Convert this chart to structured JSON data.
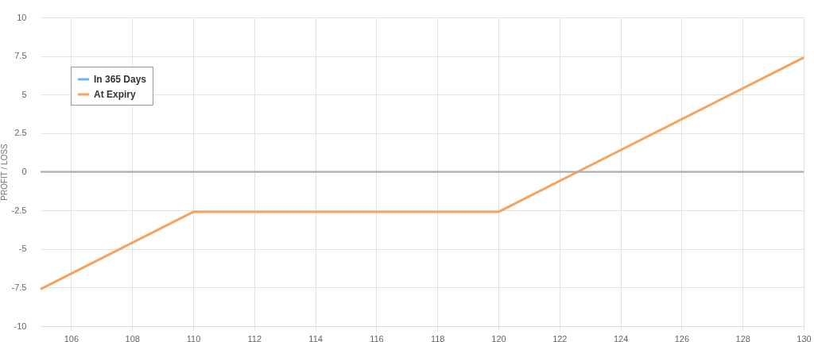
{
  "chart_data": {
    "type": "line",
    "ylabel": "PROFIT / LOSS",
    "xlim": [
      105,
      130
    ],
    "xticks": [
      106,
      108,
      110,
      112,
      114,
      116,
      118,
      120,
      122,
      124,
      126,
      128,
      130
    ],
    "ylim": [
      -10,
      10
    ],
    "yticks": [
      -10,
      -7.5,
      -5,
      -2.5,
      0,
      2.5,
      5,
      7.5,
      10
    ],
    "series": [
      {
        "name": "In 365 Days",
        "color": "#6fb4ea"
      },
      {
        "name": "At Expiry",
        "color": "#f5a35e",
        "x": [
          105,
          110,
          120,
          130
        ],
        "values": [
          -7.6,
          -2.6,
          -2.6,
          7.4
        ]
      }
    ],
    "ref_lines": [
      {
        "axis": "y",
        "value": 0,
        "color": "#aaaaaa"
      }
    ],
    "grid": true,
    "legend": "top left",
    "marker": "none",
    "line_style": "solid"
  }
}
